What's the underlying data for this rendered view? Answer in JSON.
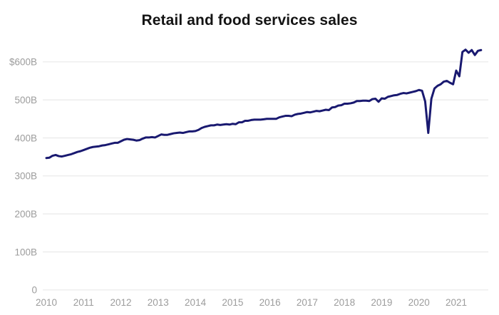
{
  "page": {
    "background": "#ffffff"
  },
  "header": {
    "title": "Retail and food services sales"
  },
  "chart_data": {
    "type": "line",
    "title": "Retail and food services sales",
    "xlabel": "",
    "ylabel": "",
    "unit": "USD billions per month",
    "ylim": [
      0,
      600
    ],
    "grid": "horizontal",
    "legend_position": "none",
    "line_color": "#191970",
    "axis_label_color": "#9c9c9c",
    "gridline_color": "#e9e9e9",
    "x_tick_labels": [
      "2010",
      "2011",
      "2012",
      "2013",
      "2014",
      "2015",
      "2016",
      "2017",
      "2018",
      "2019",
      "2020",
      "2021"
    ],
    "y_ticks": [
      {
        "label": "$600B",
        "value": 600
      },
      {
        "label": "500B",
        "value": 500
      },
      {
        "label": "400B",
        "value": 400
      },
      {
        "label": "300B",
        "value": 300
      },
      {
        "label": "200B",
        "value": 200
      },
      {
        "label": "100B",
        "value": 100
      },
      {
        "label": "0",
        "value": 0
      }
    ],
    "series": [
      {
        "name": "Retail and food services sales",
        "frequency": "monthly",
        "start": "2010-01",
        "end": "2021-09",
        "values": [
          347,
          348,
          353,
          355,
          352,
          351,
          353,
          355,
          357,
          360,
          363,
          365,
          368,
          371,
          374,
          376,
          377,
          378,
          380,
          381,
          383,
          385,
          387,
          387,
          391,
          395,
          397,
          396,
          395,
          393,
          394,
          398,
          401,
          401,
          402,
          401,
          405,
          409,
          408,
          408,
          410,
          412,
          413,
          414,
          413,
          415,
          417,
          417,
          418,
          421,
          426,
          429,
          431,
          433,
          433,
          435,
          434,
          435,
          436,
          435,
          437,
          436,
          441,
          441,
          445,
          445,
          447,
          448,
          448,
          448,
          449,
          450,
          450,
          450,
          450,
          454,
          456,
          458,
          458,
          457,
          461,
          463,
          464,
          466,
          468,
          467,
          469,
          471,
          470,
          472,
          474,
          473,
          480,
          481,
          485,
          486,
          490,
          490,
          491,
          493,
          497,
          497,
          498,
          498,
          497,
          502,
          503,
          495,
          504,
          503,
          508,
          510,
          512,
          513,
          516,
          518,
          517,
          519,
          521,
          523,
          526,
          524,
          496,
          413,
          503,
          530,
          537,
          541,
          548,
          550,
          545,
          541,
          577,
          562,
          626,
          632,
          624,
          631,
          618,
          629,
          631
        ]
      }
    ]
  }
}
